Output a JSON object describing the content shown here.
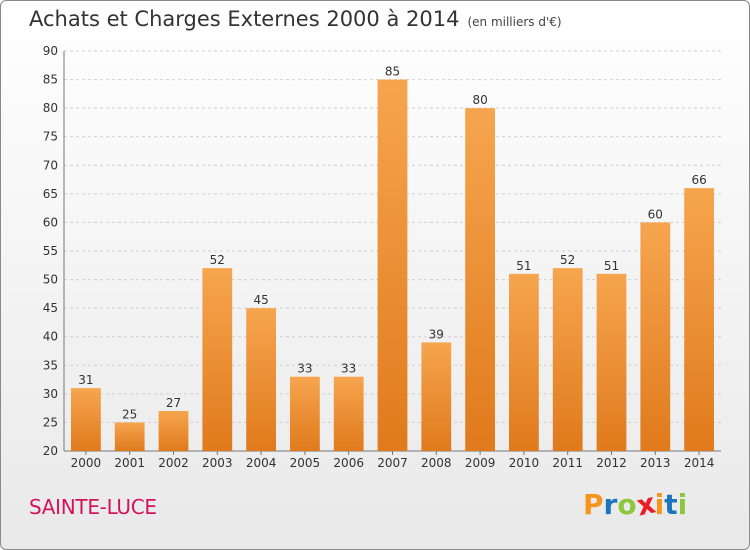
{
  "header": {
    "title": "Achats et Charges Externes 2000 à 2014",
    "subtitle": "(en milliers d'€)"
  },
  "footer": {
    "place": "SAINTE-LUCE"
  },
  "logo": {
    "text": "Proxiti",
    "colors": [
      "#f7941d",
      "#1b75bc",
      "#8dc63f",
      "#ed1c24",
      "#f7941d",
      "#1b75bc",
      "#8dc63f"
    ]
  },
  "colors": {
    "bar_top": "#f6a54f",
    "bar_bottom": "#e07a1c",
    "grid": "#cfcfcf",
    "place": "#d4145a"
  },
  "chart_data": {
    "type": "bar",
    "title": "Achats et Charges Externes 2000 à 2014",
    "subtitle": "(en milliers d'€)",
    "xlabel": "",
    "ylabel": "",
    "categories": [
      "2000",
      "2001",
      "2002",
      "2003",
      "2004",
      "2005",
      "2006",
      "2007",
      "2008",
      "2009",
      "2010",
      "2011",
      "2012",
      "2013",
      "2014"
    ],
    "values": [
      31,
      25,
      27,
      52,
      45,
      33,
      33,
      85,
      39,
      80,
      51,
      52,
      51,
      60,
      66
    ],
    "ylim": [
      20,
      90
    ],
    "yticks": [
      20,
      25,
      30,
      35,
      40,
      45,
      50,
      55,
      60,
      65,
      70,
      75,
      80,
      85,
      90
    ],
    "grid": true,
    "data_labels": true
  }
}
